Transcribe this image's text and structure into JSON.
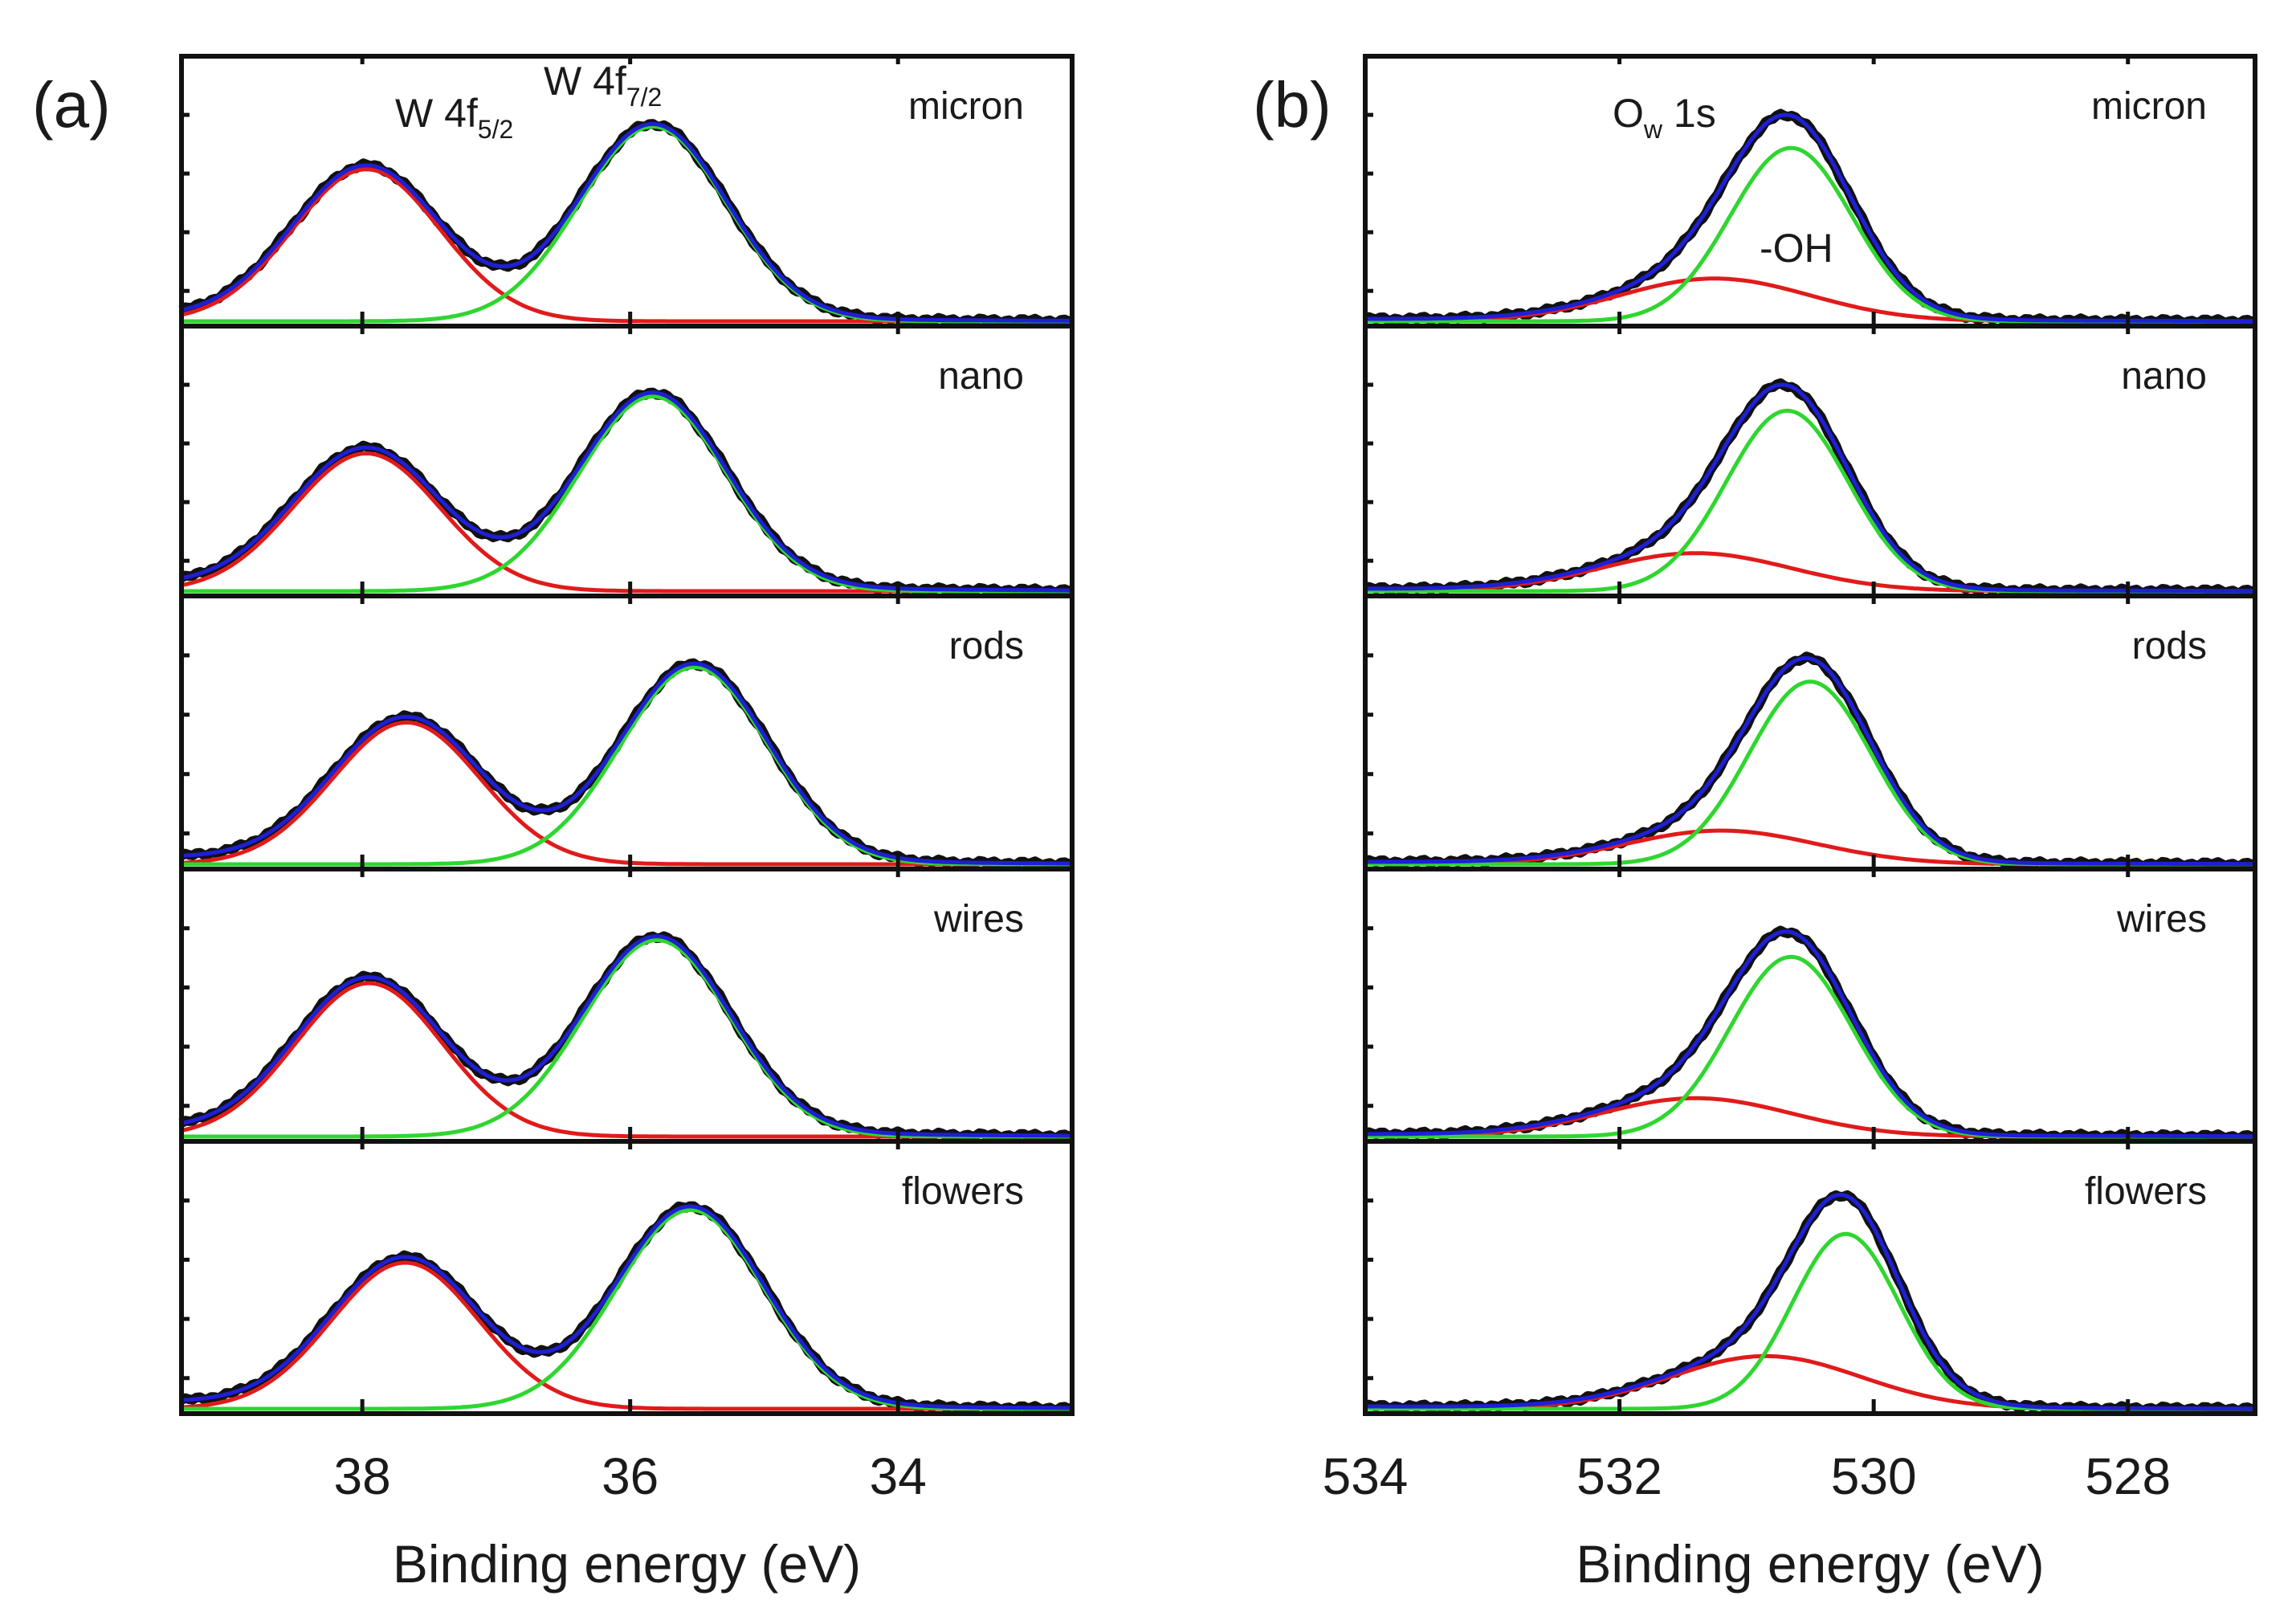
{
  "figure": {
    "panel_a_letter": "(a)",
    "panel_b_letter": "(b)"
  },
  "colors": {
    "data": "#111111",
    "fit_envelope": "#1f1fd6",
    "component_1": "#e01b1b",
    "component_2": "#2fd62f",
    "frame": "#111111"
  },
  "chart_data": [
    {
      "type": "line",
      "panel": "(a)",
      "title": "W 4f",
      "xlabel": "Binding energy (eV)",
      "ylabel": "",
      "xlim": [
        39.35,
        32.7
      ],
      "x_reversed": true,
      "xticks": [
        38,
        36,
        34
      ],
      "xtick_labels": [
        "38",
        "36",
        "34"
      ],
      "peak_labels": [
        {
          "base": "W 4f",
          "sub": "5/2",
          "x": 38.0
        },
        {
          "base": "W 4f",
          "sub": "7/2",
          "x": 35.8
        }
      ],
      "components": [
        {
          "name": "W 4f5/2",
          "color": "red"
        },
        {
          "name": "W 4f7/2",
          "color": "green"
        },
        {
          "name": "Envelope fit",
          "color": "blue"
        },
        {
          "name": "Measured data",
          "color": "black"
        }
      ],
      "series": [
        {
          "name": "micron",
          "baseline": 0.02,
          "peaks": [
            {
              "center": 37.97,
              "amp": 0.64,
              "sigma": 0.55
            },
            {
              "center": 35.83,
              "amp": 0.82,
              "sigma": 0.55
            }
          ]
        },
        {
          "name": "nano",
          "baseline": 0.03,
          "peaks": [
            {
              "center": 37.97,
              "amp": 0.58,
              "sigma": 0.55
            },
            {
              "center": 35.83,
              "amp": 0.82,
              "sigma": 0.55
            }
          ]
        },
        {
          "name": "rods",
          "baseline": 0.03,
          "peaks": [
            {
              "center": 37.67,
              "amp": 0.59,
              "sigma": 0.55
            },
            {
              "center": 35.52,
              "amp": 0.82,
              "sigma": 0.55
            }
          ]
        },
        {
          "name": "wires",
          "baseline": 0.03,
          "peaks": [
            {
              "center": 37.95,
              "amp": 0.64,
              "sigma": 0.55
            },
            {
              "center": 35.8,
              "amp": 0.82,
              "sigma": 0.55
            }
          ]
        },
        {
          "name": "flowers",
          "baseline": 0.03,
          "peaks": [
            {
              "center": 37.68,
              "amp": 0.61,
              "sigma": 0.55
            },
            {
              "center": 35.55,
              "amp": 0.83,
              "sigma": 0.55
            }
          ]
        }
      ]
    },
    {
      "type": "line",
      "panel": "(b)",
      "title": "Ow 1s",
      "xlabel": "Binding energy (eV)",
      "ylabel": "",
      "xlim": [
        534.0,
        527.0
      ],
      "x_reversed": true,
      "xticks": [
        534,
        532,
        530,
        528
      ],
      "xtick_labels": [
        "534",
        "532",
        "530",
        "528"
      ],
      "peak_labels": [
        {
          "base": "O",
          "sub": "w",
          "tail": " 1s",
          "x": 531.3
        },
        {
          "base": "-OH",
          "sub": "",
          "tail": "",
          "x": 530.9
        }
      ],
      "components": [
        {
          "name": "-OH",
          "color": "red"
        },
        {
          "name": "Ow 1s",
          "color": "green"
        },
        {
          "name": "Envelope fit",
          "color": "blue"
        },
        {
          "name": "Measured data",
          "color": "black"
        }
      ],
      "series": [
        {
          "name": "micron",
          "baseline": 0.01,
          "peaks": [
            {
              "center": 531.25,
              "amp": 0.18,
              "sigma": 0.75
            },
            {
              "center": 530.65,
              "amp": 0.73,
              "sigma": 0.48
            }
          ]
        },
        {
          "name": "nano",
          "baseline": 0.01,
          "peaks": [
            {
              "center": 531.4,
              "amp": 0.16,
              "sigma": 0.75
            },
            {
              "center": 530.68,
              "amp": 0.76,
              "sigma": 0.48
            }
          ]
        },
        {
          "name": "rods",
          "baseline": 0.01,
          "peaks": [
            {
              "center": 531.2,
              "amp": 0.14,
              "sigma": 0.75
            },
            {
              "center": 530.5,
              "amp": 0.76,
              "sigma": 0.48
            }
          ]
        },
        {
          "name": "wires",
          "baseline": 0.01,
          "peaks": [
            {
              "center": 531.4,
              "amp": 0.16,
              "sigma": 0.75
            },
            {
              "center": 530.65,
              "amp": 0.75,
              "sigma": 0.48
            }
          ]
        },
        {
          "name": "flowers",
          "baseline": 0.01,
          "peaks": [
            {
              "center": 530.85,
              "amp": 0.22,
              "sigma": 0.75
            },
            {
              "center": 530.22,
              "amp": 0.73,
              "sigma": 0.42
            }
          ]
        }
      ]
    }
  ]
}
